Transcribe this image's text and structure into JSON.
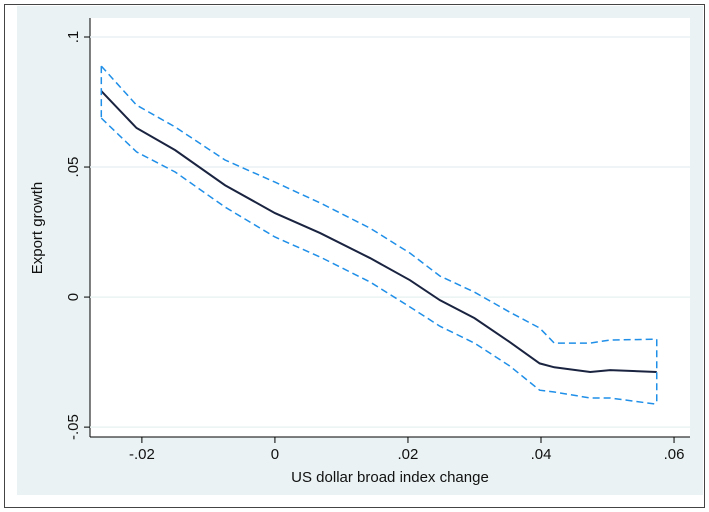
{
  "chart_data": {
    "type": "line",
    "xlabel": "US dollar broad index change",
    "ylabel": "Export growth",
    "x": [
      -0.0261,
      -0.0208,
      -0.015,
      -0.0075,
      0,
      0.0068,
      0.0143,
      0.0203,
      0.0248,
      0.03,
      0.0353,
      0.0398,
      0.042,
      0.0474,
      0.0504,
      0.0574
    ],
    "series": [
      {
        "color": "#1a2440",
        "dashed": false,
        "values": [
          0.0792,
          0.065,
          0.0565,
          0.043,
          0.0323,
          0.0246,
          0.015,
          0.0065,
          -0.0012,
          -0.0081,
          -0.0173,
          -0.0255,
          -0.027,
          -0.0288,
          -0.0281,
          -0.0288
        ]
      },
      {
        "color": "#1f8fe8",
        "dashed": true,
        "values": [
          0.0888,
          0.0738,
          0.0654,
          0.0527,
          0.0442,
          0.0362,
          0.0265,
          0.0169,
          0.0081,
          0.0019,
          -0.0058,
          -0.0119,
          -0.0177,
          -0.0177,
          -0.0165,
          -0.0162
        ]
      },
      {
        "color": "#1f8fe8",
        "dashed": true,
        "values": [
          0.0688,
          0.0558,
          0.0481,
          0.0346,
          0.0231,
          0.0154,
          0.0058,
          -0.0038,
          -0.0112,
          -0.0177,
          -0.0265,
          -0.0358,
          -0.0365,
          -0.0388,
          -0.0388,
          -0.0412
        ]
      }
    ],
    "xlim": [
      -0.0278,
      0.0624
    ],
    "ylim": [
      -0.0538,
      0.1073
    ],
    "xticks": [
      {
        "value": -0.02,
        "label": "-.02"
      },
      0,
      {
        "value": 0.02,
        "label": ".02"
      },
      {
        "value": 0.04,
        "label": ".04"
      },
      {
        "value": 0.06,
        "label": ".06"
      }
    ],
    "yticks": [
      {
        "value": -0.05,
        "label": "-.05"
      },
      0,
      {
        "value": 0.05,
        "label": ".05"
      },
      {
        "value": 0.1,
        "label": ".1"
      }
    ],
    "grid": true
  }
}
